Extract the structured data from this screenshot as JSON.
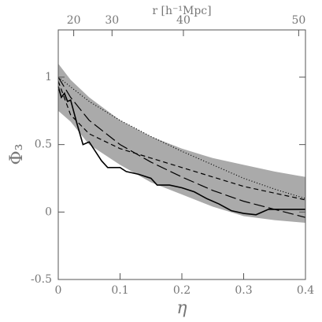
{
  "chart_data": {
    "type": "line",
    "xlabel": "η",
    "ylabel": "Φ₃",
    "x2label": "r [h⁻¹Mpc]",
    "xlim": [
      0,
      0.4
    ],
    "ylim": [
      -0.5,
      1.35
    ],
    "xticks": [
      0,
      0.1,
      0.2,
      0.3,
      0.4
    ],
    "yticks": [
      -0.5,
      0,
      0.5,
      1
    ],
    "x2ticks": [
      {
        "value": 0.025,
        "label": "20"
      },
      {
        "value": 0.087,
        "label": "30"
      },
      {
        "value": 0.2025,
        "label": "40"
      },
      {
        "value": 0.389,
        "label": "50"
      }
    ],
    "band": {
      "color": "#aaaaaa",
      "x": [
        0,
        0.02,
        0.05,
        0.1,
        0.15,
        0.2,
        0.25,
        0.3,
        0.35,
        0.4
      ],
      "upper": [
        1.1,
        0.98,
        0.85,
        0.68,
        0.56,
        0.47,
        0.4,
        0.35,
        0.3,
        0.26
      ],
      "lower": [
        0.75,
        0.67,
        0.5,
        0.35,
        0.22,
        0.13,
        0.04,
        -0.03,
        -0.06,
        -0.08
      ]
    },
    "series": [
      {
        "color": "#000000",
        "style": "solid",
        "x": [
          0,
          0.005,
          0.01,
          0.015,
          0.02,
          0.03,
          0.04,
          0.05,
          0.06,
          0.07,
          0.08,
          0.1,
          0.11,
          0.13,
          0.15,
          0.16,
          0.18,
          0.2,
          0.22,
          0.24,
          0.26,
          0.28,
          0.3,
          0.32,
          0.34,
          0.36,
          0.38,
          0.4
        ],
        "values": [
          0.93,
          0.85,
          0.88,
          0.82,
          0.83,
          0.66,
          0.5,
          0.52,
          0.45,
          0.38,
          0.33,
          0.33,
          0.3,
          0.28,
          0.25,
          0.2,
          0.2,
          0.18,
          0.15,
          0.1,
          0.06,
          0.01,
          -0.01,
          -0.02,
          0.02,
          0.02,
          0.02,
          0.02
        ]
      },
      {
        "color": "#000000",
        "style": "dotted",
        "x": [
          0,
          0.05,
          0.1,
          0.15,
          0.2,
          0.25,
          0.3,
          0.35,
          0.4
        ],
        "values": [
          1,
          0.82,
          0.68,
          0.56,
          0.45,
          0.35,
          0.25,
          0.17,
          0.1
        ]
      },
      {
        "color": "#000000",
        "style": "short-dash",
        "x": [
          0,
          0.02,
          0.05,
          0.1,
          0.15,
          0.2,
          0.25,
          0.3,
          0.35,
          0.4
        ],
        "values": [
          0.97,
          0.72,
          0.58,
          0.47,
          0.4,
          0.33,
          0.26,
          0.19,
          0.14,
          0.09
        ]
      },
      {
        "color": "#000000",
        "style": "long-dash",
        "x": [
          0,
          0.02,
          0.05,
          0.1,
          0.15,
          0.2,
          0.25,
          0.3,
          0.35,
          0.4
        ],
        "values": [
          1,
          0.85,
          0.68,
          0.5,
          0.37,
          0.26,
          0.16,
          0.08,
          0.02,
          -0.04
        ]
      }
    ]
  }
}
